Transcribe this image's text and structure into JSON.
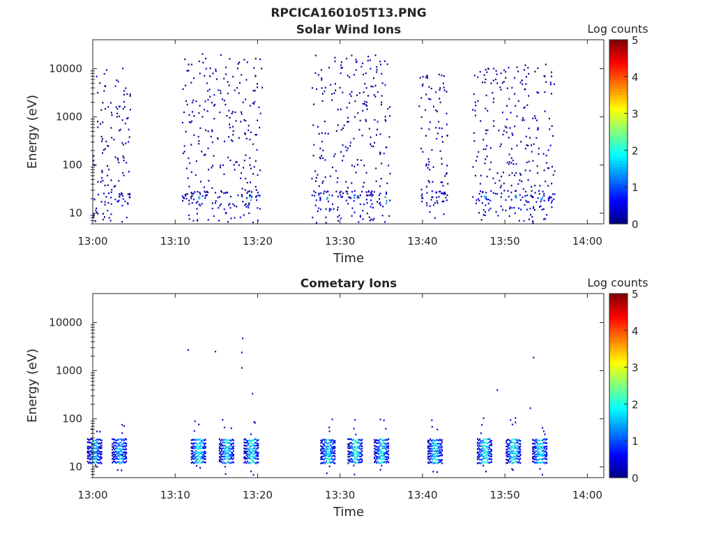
{
  "figure_title": "RPCICA160105T13.PNG",
  "chart_data": [
    {
      "type": "heatmap",
      "title": "Solar Wind Ions",
      "xlabel": "Time",
      "ylabel": "Energy (eV)",
      "x_ticks": [
        "13:00",
        "13:10",
        "13:20",
        "13:30",
        "13:40",
        "13:50",
        "14:00"
      ],
      "x_tick_minutes": [
        0,
        10,
        20,
        30,
        40,
        50,
        60
      ],
      "xlim_minutes": [
        0,
        62
      ],
      "y_scale": "log",
      "y_ticks": [
        "10",
        "100",
        "1000",
        "10000"
      ],
      "y_tick_values": [
        10,
        100,
        1000,
        10000
      ],
      "ylim": [
        6,
        40000
      ],
      "colorbar": {
        "label": "Log counts",
        "ticks": [
          "0",
          "1",
          "2",
          "3",
          "4",
          "5"
        ],
        "range": [
          0,
          5
        ],
        "colormap": "jet"
      },
      "bursts": [
        {
          "start_min": 0.0,
          "end_min": 4.5,
          "max_energy_ev": 10000
        },
        {
          "start_min": 10.8,
          "end_min": 20.5,
          "max_energy_ev": 20000
        },
        {
          "start_min": 26.5,
          "end_min": 36.0,
          "max_energy_ev": 20000
        },
        {
          "start_min": 39.5,
          "end_min": 43.0,
          "max_energy_ev": 8000
        },
        {
          "start_min": 46.0,
          "end_min": 56.0,
          "max_energy_ev": 12000
        }
      ],
      "peak_cells": [
        {
          "time_min": 12.8,
          "energy_ev": 20,
          "log_counts": 2
        },
        {
          "time_min": 19.0,
          "energy_ev": 20,
          "log_counts": 1.8
        },
        {
          "time_min": 28.5,
          "energy_ev": 20,
          "log_counts": 1.5
        },
        {
          "time_min": 31.8,
          "energy_ev": 20,
          "log_counts": 1.4
        },
        {
          "time_min": 35.5,
          "energy_ev": 18,
          "log_counts": 1.5
        },
        {
          "time_min": 47.5,
          "energy_ev": 20,
          "log_counts": 1.5
        },
        {
          "time_min": 51.2,
          "energy_ev": 20,
          "log_counts": 1.5
        },
        {
          "time_min": 54.5,
          "energy_ev": 20,
          "log_counts": 1.5
        }
      ]
    },
    {
      "type": "heatmap",
      "title": "Cometary Ions",
      "xlabel": "Time",
      "ylabel": "Energy (eV)",
      "x_ticks": [
        "13:00",
        "13:10",
        "13:20",
        "13:30",
        "13:40",
        "13:50",
        "14:00"
      ],
      "x_tick_minutes": [
        0,
        10,
        20,
        30,
        40,
        50,
        60
      ],
      "xlim_minutes": [
        0,
        62
      ],
      "y_scale": "log",
      "y_ticks": [
        "10",
        "100",
        "1000",
        "10000"
      ],
      "y_tick_values": [
        10,
        100,
        1000,
        10000
      ],
      "ylim": [
        6,
        40000
      ],
      "colorbar": {
        "label": "Log counts",
        "ticks": [
          "0",
          "1",
          "2",
          "3",
          "4",
          "5"
        ],
        "range": [
          0,
          5
        ],
        "colormap": "jet"
      },
      "clusters": [
        {
          "time_min": 0.2,
          "log_counts": 2.2
        },
        {
          "time_min": 3.2,
          "log_counts": 2.2
        },
        {
          "time_min": 12.8,
          "log_counts": 2.8
        },
        {
          "time_min": 16.2,
          "log_counts": 2.5
        },
        {
          "time_min": 19.2,
          "log_counts": 2.7
        },
        {
          "time_min": 28.5,
          "log_counts": 2.5
        },
        {
          "time_min": 31.8,
          "log_counts": 2.8
        },
        {
          "time_min": 35.0,
          "log_counts": 2.6
        },
        {
          "time_min": 41.5,
          "log_counts": 2.4
        },
        {
          "time_min": 47.5,
          "log_counts": 2.9
        },
        {
          "time_min": 51.0,
          "log_counts": 2.8
        },
        {
          "time_min": 54.2,
          "log_counts": 2.7
        }
      ],
      "isolated_points": [
        {
          "time_min": 11.5,
          "energy_ev": 2600
        },
        {
          "time_min": 14.8,
          "energy_ev": 2400
        },
        {
          "time_min": 18.1,
          "energy_ev": 4500
        },
        {
          "time_min": 18.0,
          "energy_ev": 2300
        },
        {
          "time_min": 18.0,
          "energy_ev": 1100
        },
        {
          "time_min": 19.3,
          "energy_ev": 320
        },
        {
          "time_min": 49.0,
          "energy_ev": 380
        },
        {
          "time_min": 51.2,
          "energy_ev": 100
        },
        {
          "time_min": 53.0,
          "energy_ev": 160
        },
        {
          "time_min": 53.4,
          "energy_ev": 1800
        }
      ]
    }
  ]
}
